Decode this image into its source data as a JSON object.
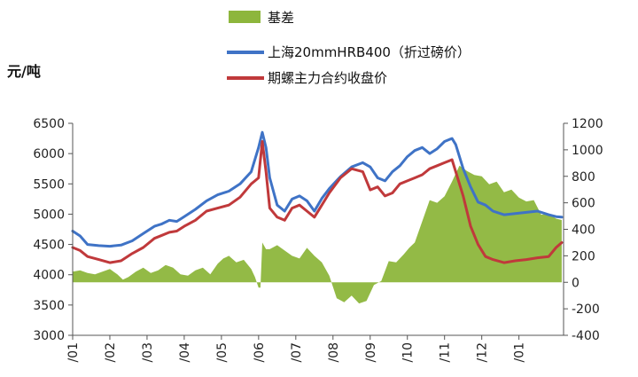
{
  "chart_data": {
    "type": "line",
    "unit_left": "元/吨",
    "y_left": {
      "min": 3000,
      "max": 6500,
      "ticks": [
        3000,
        3500,
        4000,
        4500,
        5000,
        5500,
        6000,
        6500
      ]
    },
    "y_right": {
      "min": -400,
      "max": 1200,
      "ticks": [
        -400,
        -200,
        0,
        200,
        400,
        600,
        800,
        1000,
        1200
      ]
    },
    "x_tick_labels": [
      "/01",
      "/02",
      "/03",
      "/04",
      "/05",
      "/06",
      "/07",
      "/08",
      "/09",
      "/10",
      "/11",
      "/12",
      "/01"
    ],
    "legend": [
      {
        "label": "基差",
        "color": "#8db63c",
        "kind": "area"
      },
      {
        "label": "上海20mmHRB400（折过磅价）",
        "color": "#3f73c6",
        "kind": "line"
      },
      {
        "label": "期螺主力合约收盘价",
        "color": "#c0393b",
        "kind": "line"
      }
    ],
    "series": [
      {
        "name": "基差",
        "axis": "right",
        "color": "#8db63c",
        "x": [
          0.0,
          0.2,
          0.4,
          0.6,
          0.8,
          1.0,
          1.2,
          1.35,
          1.5,
          1.7,
          1.9,
          2.1,
          2.3,
          2.5,
          2.7,
          2.9,
          3.1,
          3.3,
          3.5,
          3.7,
          3.9,
          4.05,
          4.2,
          4.4,
          4.6,
          4.8,
          4.9,
          5.0,
          5.05,
          5.1,
          5.2,
          5.3,
          5.5,
          5.7,
          5.9,
          6.1,
          6.3,
          6.5,
          6.7,
          6.9,
          7.1,
          7.3,
          7.5,
          7.7,
          7.9,
          8.1,
          8.3,
          8.5,
          8.7,
          8.9,
          9.05,
          9.2,
          9.4,
          9.6,
          9.8,
          10.0,
          10.2,
          10.4,
          10.6,
          10.8,
          11.0,
          11.2,
          11.4,
          11.6,
          11.8,
          12.0,
          12.2,
          12.4,
          12.6,
          12.8,
          13.0,
          13.15
        ],
        "values": [
          80,
          90,
          70,
          60,
          80,
          100,
          60,
          20,
          40,
          80,
          110,
          70,
          90,
          130,
          110,
          60,
          50,
          90,
          110,
          60,
          140,
          180,
          200,
          150,
          170,
          100,
          40,
          -40,
          -40,
          300,
          250,
          250,
          280,
          240,
          200,
          180,
          260,
          200,
          150,
          50,
          -120,
          -150,
          -100,
          -160,
          -140,
          -20,
          10,
          160,
          150,
          210,
          260,
          300,
          460,
          620,
          600,
          650,
          760,
          880,
          840,
          810,
          800,
          740,
          760,
          680,
          700,
          640,
          610,
          620,
          510,
          520,
          480,
          470
        ]
      },
      {
        "name": "上海20mmHRB400（折过磅价）",
        "axis": "left",
        "color": "#3f73c6",
        "x": [
          0.0,
          0.2,
          0.4,
          0.7,
          1.0,
          1.3,
          1.6,
          1.9,
          2.2,
          2.4,
          2.6,
          2.8,
          3.0,
          3.3,
          3.6,
          3.9,
          4.2,
          4.5,
          4.8,
          5.0,
          5.1,
          5.2,
          5.3,
          5.5,
          5.7,
          5.9,
          6.1,
          6.3,
          6.5,
          6.7,
          6.9,
          7.2,
          7.5,
          7.8,
          8.0,
          8.2,
          8.4,
          8.6,
          8.8,
          9.0,
          9.2,
          9.4,
          9.6,
          9.8,
          10.0,
          10.2,
          10.3,
          10.5,
          10.7,
          10.9,
          11.1,
          11.3,
          11.6,
          11.9,
          12.2,
          12.5,
          12.8,
          13.0,
          13.15
        ],
        "values": [
          4720,
          4640,
          4500,
          4480,
          4470,
          4490,
          4560,
          4680,
          4800,
          4840,
          4900,
          4880,
          4960,
          5080,
          5220,
          5320,
          5380,
          5500,
          5700,
          6100,
          6350,
          6100,
          5600,
          5150,
          5050,
          5250,
          5300,
          5220,
          5050,
          5260,
          5420,
          5620,
          5780,
          5850,
          5780,
          5600,
          5550,
          5700,
          5800,
          5950,
          6050,
          6100,
          6000,
          6080,
          6200,
          6250,
          6150,
          5750,
          5450,
          5200,
          5150,
          5050,
          4990,
          5010,
          5030,
          5050,
          4990,
          4960,
          4950
        ]
      },
      {
        "name": "期螺主力合约收盘价",
        "axis": "left",
        "color": "#c0393b",
        "x": [
          0.0,
          0.2,
          0.4,
          0.7,
          1.0,
          1.3,
          1.6,
          1.9,
          2.2,
          2.4,
          2.6,
          2.8,
          3.0,
          3.3,
          3.6,
          3.9,
          4.2,
          4.5,
          4.8,
          5.0,
          5.1,
          5.2,
          5.3,
          5.5,
          5.7,
          5.9,
          6.1,
          6.3,
          6.5,
          6.7,
          6.9,
          7.2,
          7.5,
          7.8,
          8.0,
          8.2,
          8.4,
          8.6,
          8.8,
          9.0,
          9.2,
          9.4,
          9.6,
          9.8,
          10.0,
          10.2,
          10.3,
          10.5,
          10.7,
          10.9,
          11.1,
          11.3,
          11.6,
          11.9,
          12.2,
          12.5,
          12.8,
          13.0,
          13.15
        ],
        "values": [
          4450,
          4400,
          4300,
          4250,
          4200,
          4230,
          4350,
          4450,
          4600,
          4650,
          4700,
          4720,
          4800,
          4900,
          5050,
          5100,
          5150,
          5280,
          5500,
          5600,
          6200,
          5700,
          5100,
          4950,
          4900,
          5100,
          5150,
          5050,
          4950,
          5150,
          5350,
          5600,
          5750,
          5700,
          5400,
          5450,
          5300,
          5350,
          5500,
          5550,
          5600,
          5650,
          5750,
          5800,
          5850,
          5900,
          5700,
          5300,
          4800,
          4500,
          4300,
          4250,
          4200,
          4230,
          4250,
          4280,
          4300,
          4450,
          4530
        ]
      }
    ]
  }
}
